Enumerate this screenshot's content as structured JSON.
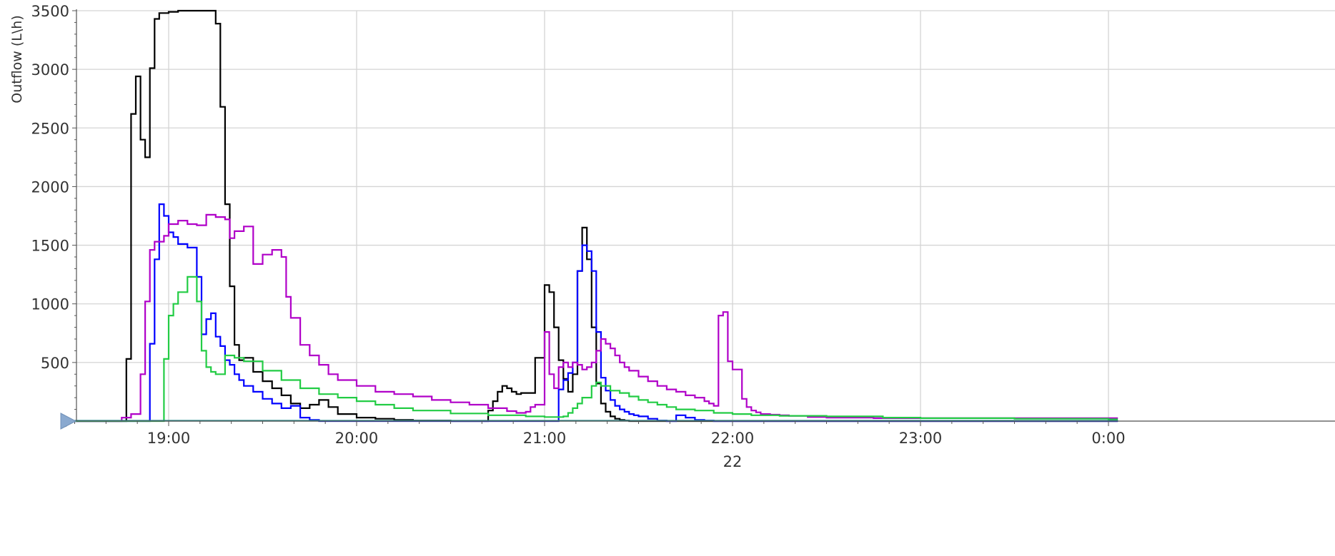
{
  "chart_data": {
    "type": "line",
    "step": true,
    "title": "",
    "ylabel": "Outflow (L\\h)",
    "xlabel": "",
    "date_label": "22",
    "ylim": [
      0,
      3500
    ],
    "xlim": [
      18.5,
      24.0
    ],
    "grid": true,
    "legend": "none",
    "y_ticks": [
      0,
      500,
      1000,
      1500,
      2000,
      2500,
      3000,
      3500
    ],
    "x_ticks": [
      {
        "value": 19,
        "label": "19:00"
      },
      {
        "value": 20,
        "label": "20:00"
      },
      {
        "value": 21,
        "label": "21:00"
      },
      {
        "value": 22,
        "label": "22:00"
      },
      {
        "value": 23,
        "label": "23:00"
      },
      {
        "value": 24,
        "label": "0:00"
      }
    ],
    "series": [
      {
        "color": "#000000",
        "x": [
          18.5,
          18.775,
          18.8,
          18.825,
          18.85,
          18.875,
          18.9,
          18.925,
          18.95,
          18.975,
          19.0,
          19.05,
          19.1,
          19.25,
          19.275,
          19.3,
          19.325,
          19.35,
          19.375,
          19.4,
          19.45,
          19.5,
          19.55,
          19.6,
          19.65,
          19.7,
          19.75,
          19.8,
          19.85,
          19.9,
          20.0,
          20.1,
          20.2,
          20.3,
          20.5,
          20.7,
          20.725,
          20.75,
          20.775,
          20.8,
          20.825,
          20.85,
          20.875,
          20.9,
          20.95,
          21.0,
          21.025,
          21.05,
          21.075,
          21.1,
          21.125,
          21.15,
          21.175,
          21.2,
          21.225,
          21.25,
          21.275,
          21.3,
          21.325,
          21.35,
          21.375,
          21.4,
          21.425,
          21.45,
          21.475,
          21.5,
          21.55,
          21.6,
          22.5
        ],
        "y": [
          0,
          530,
          2620,
          2940,
          2400,
          2250,
          3010,
          3430,
          3480,
          3480,
          3490,
          3500,
          3500,
          3390,
          2680,
          1850,
          1150,
          650,
          520,
          540,
          420,
          340,
          280,
          220,
          150,
          110,
          140,
          180,
          120,
          60,
          30,
          20,
          10,
          5,
          0,
          90,
          170,
          250,
          300,
          280,
          250,
          230,
          240,
          240,
          540,
          1160,
          1100,
          800,
          520,
          360,
          250,
          400,
          1280,
          1650,
          1380,
          800,
          320,
          150,
          80,
          40,
          20,
          10,
          5,
          0,
          0,
          0,
          0,
          0,
          0
        ]
      },
      {
        "color": "#0000ff",
        "x": [
          18.5,
          18.9,
          18.925,
          18.95,
          18.975,
          19.0,
          19.025,
          19.05,
          19.1,
          19.15,
          19.175,
          19.2,
          19.225,
          19.25,
          19.275,
          19.3,
          19.325,
          19.35,
          19.375,
          19.4,
          19.45,
          19.5,
          19.55,
          19.6,
          19.65,
          19.7,
          19.75,
          19.8,
          19.85,
          20.0,
          20.1,
          20.2,
          20.4,
          20.6,
          20.8,
          21.0,
          21.05,
          21.075,
          21.1,
          21.125,
          21.15,
          21.175,
          21.2,
          21.225,
          21.25,
          21.275,
          21.3,
          21.325,
          21.35,
          21.375,
          21.4,
          21.425,
          21.45,
          21.475,
          21.5,
          21.55,
          21.6,
          21.65,
          21.7,
          21.75,
          21.8,
          21.85,
          21.9,
          21.95,
          22.0,
          22.05,
          22.1,
          22.5,
          23.0,
          24.0
        ],
        "y": [
          0,
          660,
          1380,
          1850,
          1750,
          1610,
          1570,
          1510,
          1480,
          1230,
          740,
          870,
          920,
          720,
          640,
          520,
          480,
          400,
          350,
          300,
          250,
          190,
          150,
          110,
          130,
          30,
          10,
          0,
          0,
          0,
          0,
          0,
          0,
          0,
          0,
          0,
          0,
          270,
          350,
          410,
          500,
          1280,
          1500,
          1450,
          1280,
          760,
          370,
          260,
          180,
          130,
          100,
          80,
          60,
          50,
          40,
          20,
          5,
          0,
          50,
          30,
          10,
          5,
          0,
          0,
          0,
          0,
          0,
          0,
          0,
          0
        ]
      },
      {
        "color": "#b000c8",
        "x": [
          18.5,
          18.75,
          18.8,
          18.85,
          18.875,
          18.9,
          18.925,
          18.975,
          19.0,
          19.05,
          19.1,
          19.15,
          19.2,
          19.25,
          19.3,
          19.325,
          19.35,
          19.4,
          19.45,
          19.475,
          19.5,
          19.55,
          19.6,
          19.625,
          19.65,
          19.7,
          19.75,
          19.8,
          19.85,
          19.9,
          20.0,
          20.1,
          20.2,
          20.3,
          20.4,
          20.5,
          20.6,
          20.7,
          20.8,
          20.85,
          20.9,
          20.925,
          20.95,
          21.0,
          21.025,
          21.05,
          21.075,
          21.1,
          21.125,
          21.15,
          21.175,
          21.2,
          21.225,
          21.25,
          21.275,
          21.3,
          21.325,
          21.35,
          21.375,
          21.4,
          21.425,
          21.45,
          21.5,
          21.55,
          21.6,
          21.65,
          21.7,
          21.75,
          21.8,
          21.85,
          21.875,
          21.9,
          21.925,
          21.95,
          21.975,
          22.0,
          22.05,
          22.075,
          22.1,
          22.125,
          22.15,
          22.2,
          22.25,
          22.3,
          22.4,
          22.5,
          22.75,
          23.0,
          23.25,
          23.5,
          24.0
        ],
        "y": [
          0,
          30,
          60,
          400,
          1020,
          1460,
          1530,
          1580,
          1680,
          1710,
          1680,
          1670,
          1760,
          1740,
          1720,
          1560,
          1620,
          1660,
          1340,
          1340,
          1420,
          1460,
          1400,
          1060,
          880,
          650,
          560,
          480,
          400,
          350,
          300,
          250,
          230,
          210,
          180,
          160,
          140,
          110,
          85,
          70,
          80,
          120,
          140,
          760,
          400,
          280,
          460,
          500,
          460,
          500,
          480,
          440,
          460,
          500,
          600,
          700,
          660,
          620,
          560,
          500,
          460,
          430,
          380,
          340,
          300,
          270,
          250,
          220,
          200,
          170,
          150,
          130,
          900,
          930,
          510,
          440,
          190,
          120,
          90,
          75,
          60,
          55,
          50,
          45,
          35,
          30,
          25,
          25,
          25,
          25,
          25
        ]
      },
      {
        "color": "#22cc44",
        "x": [
          18.5,
          18.975,
          19.0,
          19.025,
          19.05,
          19.1,
          19.15,
          19.175,
          19.2,
          19.225,
          19.25,
          19.3,
          19.35,
          19.4,
          19.5,
          19.6,
          19.7,
          19.8,
          19.9,
          20.0,
          20.1,
          20.2,
          20.3,
          20.5,
          20.7,
          20.9,
          21.0,
          21.075,
          21.1,
          21.125,
          21.15,
          21.175,
          21.2,
          21.25,
          21.275,
          21.3,
          21.35,
          21.4,
          21.45,
          21.5,
          21.55,
          21.6,
          21.65,
          21.7,
          21.8,
          21.9,
          22.0,
          22.1,
          22.25,
          22.5,
          22.8,
          23.0,
          23.5,
          24.0
        ],
        "y": [
          0,
          530,
          900,
          1000,
          1100,
          1230,
          1020,
          600,
          460,
          420,
          400,
          560,
          540,
          510,
          430,
          350,
          280,
          230,
          200,
          170,
          140,
          110,
          90,
          65,
          50,
          40,
          35,
          35,
          40,
          70,
          110,
          150,
          200,
          300,
          330,
          300,
          260,
          240,
          210,
          180,
          160,
          140,
          120,
          100,
          90,
          70,
          60,
          50,
          45,
          40,
          30,
          25,
          20,
          15
        ]
      },
      {
        "color": "#2a8c8c",
        "x": [
          18.5,
          20.0,
          21.0,
          22.0,
          23.0,
          24.0
        ],
        "y": [
          3,
          3,
          3,
          3,
          3,
          3
        ]
      }
    ]
  }
}
